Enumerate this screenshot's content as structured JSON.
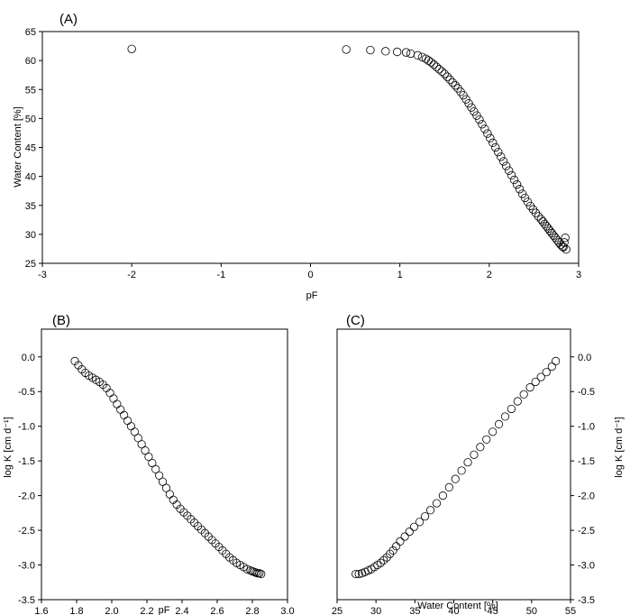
{
  "chart_data": [
    {
      "type": "scatter",
      "panel_label": "(A)",
      "xlabel": "pF",
      "ylabel": "Water Content [%]",
      "xlim": [
        -3,
        3
      ],
      "ylim": [
        25,
        65
      ],
      "xticks": [
        -3,
        -2,
        -1,
        0,
        1,
        2,
        3
      ],
      "yticks": [
        25,
        30,
        35,
        40,
        45,
        50,
        55,
        60,
        65
      ],
      "grid": false,
      "marker": "open-circle",
      "x": [
        -2.0,
        0.4,
        0.67,
        0.84,
        0.97,
        1.07,
        1.12,
        1.2,
        1.25,
        1.29,
        1.32,
        1.35,
        1.38,
        1.41,
        1.44,
        1.47,
        1.5,
        1.53,
        1.56,
        1.59,
        1.62,
        1.65,
        1.68,
        1.71,
        1.74,
        1.77,
        1.8,
        1.83,
        1.86,
        1.89,
        1.92,
        1.95,
        1.98,
        2.01,
        2.04,
        2.07,
        2.1,
        2.13,
        2.16,
        2.19,
        2.22,
        2.25,
        2.28,
        2.31,
        2.34,
        2.37,
        2.4,
        2.43,
        2.46,
        2.49,
        2.52,
        2.55,
        2.58,
        2.6,
        2.62,
        2.64,
        2.66,
        2.68,
        2.7,
        2.72,
        2.74,
        2.76,
        2.78,
        2.8,
        2.82,
        2.83,
        2.84,
        2.85,
        2.86
      ],
      "y": [
        62.0,
        61.9,
        61.8,
        61.6,
        61.5,
        61.4,
        61.2,
        60.9,
        60.6,
        60.3,
        60.0,
        59.7,
        59.3,
        58.9,
        58.5,
        58.1,
        57.7,
        57.2,
        56.7,
        56.2,
        55.7,
        55.2,
        54.6,
        54.0,
        53.3,
        52.6,
        51.9,
        51.2,
        50.5,
        49.8,
        49.0,
        48.2,
        47.4,
        46.6,
        45.8,
        45.0,
        44.2,
        43.4,
        42.6,
        41.8,
        41.0,
        40.2,
        39.4,
        38.6,
        37.8,
        37.0,
        36.3,
        35.6,
        34.9,
        34.3,
        33.7,
        33.1,
        32.6,
        32.2,
        31.8,
        31.4,
        31.0,
        30.6,
        30.2,
        29.8,
        29.4,
        29.0,
        28.6,
        28.2,
        27.9,
        27.8,
        28.6,
        29.4,
        27.4
      ]
    },
    {
      "type": "scatter",
      "panel_label": "(B)",
      "xlabel": "pF",
      "ylabel": "log K [cm d⁻¹]",
      "xlim": [
        1.6,
        3.0
      ],
      "ylim": [
        -3.5,
        0.4
      ],
      "xticks": [
        "1.6",
        "1.8",
        "2.0",
        "2.2",
        "2.4",
        "2.6",
        "2.8",
        "3.0"
      ],
      "yticks": [
        "-3.5",
        "-3.0",
        "-2.5",
        "-2.0",
        "-1.5",
        "-1.0",
        "-0.5",
        "0.0"
      ],
      "grid": false,
      "marker": "open-circle",
      "x": [
        1.79,
        1.81,
        1.83,
        1.85,
        1.87,
        1.89,
        1.91,
        1.93,
        1.95,
        1.97,
        1.99,
        2.01,
        2.03,
        2.05,
        2.07,
        2.09,
        2.11,
        2.13,
        2.15,
        2.17,
        2.19,
        2.21,
        2.23,
        2.25,
        2.27,
        2.29,
        2.31,
        2.33,
        2.35,
        2.37,
        2.39,
        2.41,
        2.43,
        2.45,
        2.47,
        2.49,
        2.51,
        2.53,
        2.55,
        2.57,
        2.59,
        2.61,
        2.63,
        2.65,
        2.67,
        2.69,
        2.71,
        2.73,
        2.75,
        2.77,
        2.79,
        2.8,
        2.81,
        2.82,
        2.83,
        2.84,
        2.85
      ],
      "y": [
        -0.06,
        -0.12,
        -0.18,
        -0.23,
        -0.27,
        -0.3,
        -0.33,
        -0.36,
        -0.4,
        -0.45,
        -0.52,
        -0.6,
        -0.68,
        -0.76,
        -0.84,
        -0.92,
        -1.0,
        -1.08,
        -1.17,
        -1.26,
        -1.35,
        -1.44,
        -1.53,
        -1.62,
        -1.71,
        -1.8,
        -1.89,
        -1.98,
        -2.06,
        -2.13,
        -2.19,
        -2.24,
        -2.29,
        -2.34,
        -2.39,
        -2.44,
        -2.49,
        -2.54,
        -2.59,
        -2.64,
        -2.69,
        -2.74,
        -2.79,
        -2.84,
        -2.89,
        -2.93,
        -2.97,
        -3.0,
        -3.03,
        -3.06,
        -3.08,
        -3.09,
        -3.1,
        -3.11,
        -3.12,
        -3.12,
        -3.13
      ]
    },
    {
      "type": "scatter",
      "panel_label": "(C)",
      "xlabel": "Water Content [%]",
      "ylabel": "log K [cm d⁻¹]",
      "xlim": [
        25,
        55
      ],
      "ylim": [
        -3.5,
        0.4
      ],
      "xticks": [
        "25",
        "30",
        "35",
        "40",
        "45",
        "50",
        "55"
      ],
      "yticks": [
        "-3.5",
        "-3.0",
        "-2.5",
        "-2.0",
        "-1.5",
        "-1.0",
        "-0.5",
        "0.0"
      ],
      "grid": false,
      "marker": "open-circle",
      "x": [
        27.4,
        27.8,
        28.2,
        28.6,
        29.0,
        29.4,
        29.8,
        30.2,
        30.6,
        31.0,
        31.4,
        31.8,
        32.2,
        32.6,
        33.1,
        33.7,
        34.3,
        34.9,
        35.6,
        36.3,
        37.0,
        37.8,
        38.6,
        39.4,
        40.2,
        41.0,
        41.8,
        42.6,
        43.4,
        44.2,
        45.0,
        45.8,
        46.6,
        47.4,
        48.2,
        49.0,
        49.8,
        50.5,
        51.2,
        51.9,
        52.6,
        53.1
      ],
      "y": [
        -3.13,
        -3.13,
        -3.12,
        -3.1,
        -3.08,
        -3.06,
        -3.03,
        -3.0,
        -2.97,
        -2.93,
        -2.89,
        -2.84,
        -2.79,
        -2.73,
        -2.66,
        -2.59,
        -2.52,
        -2.45,
        -2.38,
        -2.3,
        -2.21,
        -2.11,
        -2.0,
        -1.88,
        -1.76,
        -1.64,
        -1.52,
        -1.41,
        -1.3,
        -1.19,
        -1.08,
        -0.97,
        -0.86,
        -0.75,
        -0.64,
        -0.54,
        -0.44,
        -0.36,
        -0.29,
        -0.22,
        -0.14,
        -0.06
      ]
    }
  ]
}
